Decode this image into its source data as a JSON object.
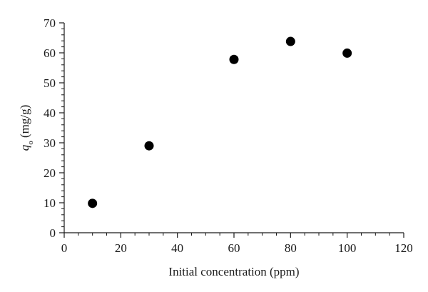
{
  "chart_data": {
    "type": "scatter",
    "title": "",
    "xlabel": "Initial concentration (ppm)",
    "ylabel": {
      "symbol": "q",
      "subscript": "o",
      "unit": " (mg/g)"
    },
    "xlim": [
      0,
      120
    ],
    "ylim": [
      0,
      70
    ],
    "xticks": [
      0,
      20,
      40,
      60,
      80,
      100,
      120
    ],
    "yticks": [
      0,
      10,
      20,
      30,
      40,
      50,
      60,
      70
    ],
    "x_minor_step": 5,
    "y_minor_step": 2,
    "grid": false,
    "legend": "none",
    "marker": "filled-circle",
    "marker_color": "#000000",
    "series": [
      {
        "x": [
          10,
          30,
          60,
          80,
          100
        ],
        "y": [
          9.8,
          29,
          57.8,
          63.8,
          59.9
        ]
      }
    ]
  }
}
